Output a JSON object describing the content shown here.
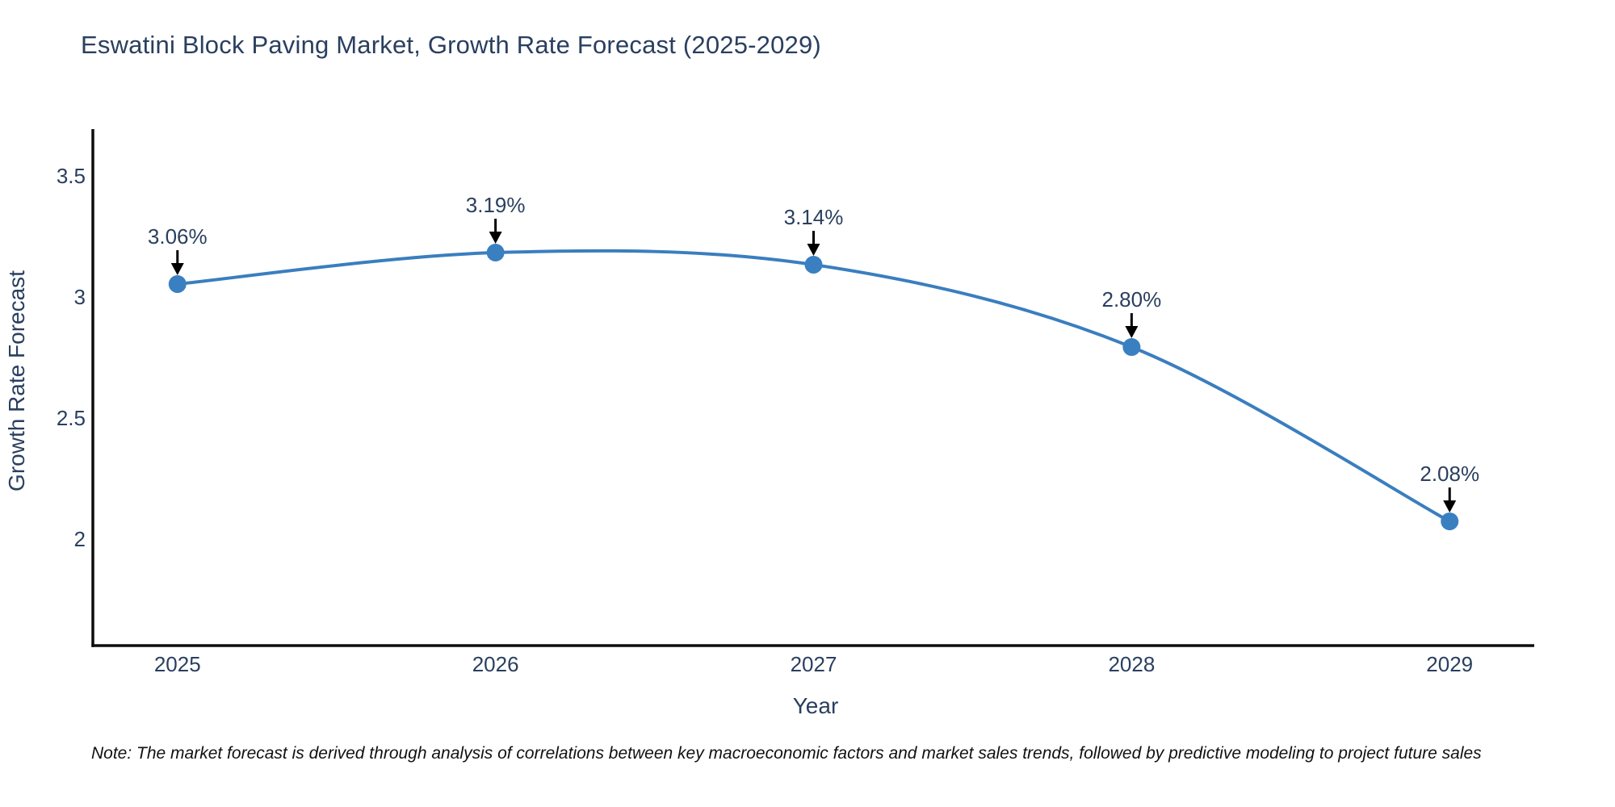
{
  "title": "Eswatini Block Paving Market, Growth Rate Forecast (2025-2029)",
  "note": "Note: The market forecast is derived through analysis of correlations between key macroeconomic factors and market sales trends, followed by predictive modeling to project future sales",
  "chart_data": {
    "type": "line",
    "title": "Eswatini Block Paving Market, Growth Rate Forecast (2025-2029)",
    "xlabel": "Year",
    "ylabel": "Growth Rate Forecast",
    "x": [
      2025,
      2026,
      2027,
      2028,
      2029
    ],
    "series": [
      {
        "name": "Growth Rate Forecast",
        "values": [
          3.06,
          3.19,
          3.14,
          2.8,
          2.08
        ]
      }
    ],
    "point_labels": [
      "3.06%",
      "3.19%",
      "3.14%",
      "2.80%",
      "2.08%"
    ],
    "x_ticks": [
      "2025",
      "2026",
      "2027",
      "2028",
      "2029"
    ],
    "y_ticks": [
      "2",
      "2.5",
      "3",
      "3.5"
    ],
    "y_tick_values": [
      2,
      2.5,
      3,
      3.5
    ],
    "xlim": [
      2024.734,
      2029.266
    ],
    "ylim": [
      1.567,
      3.7
    ],
    "grid": false,
    "legend": "none",
    "smooth": true,
    "colors": {
      "line": "#3a7ebf",
      "marker": "#3a80c1",
      "annotation_text": "#2a3f5f",
      "annotation_arrow": "#000000",
      "axis_line": "#0d0d0d",
      "tick_label": "#2a3f5f",
      "axis_title": "#2a3f5f",
      "title": "#2a3f5f",
      "background": "#ffffff"
    }
  }
}
